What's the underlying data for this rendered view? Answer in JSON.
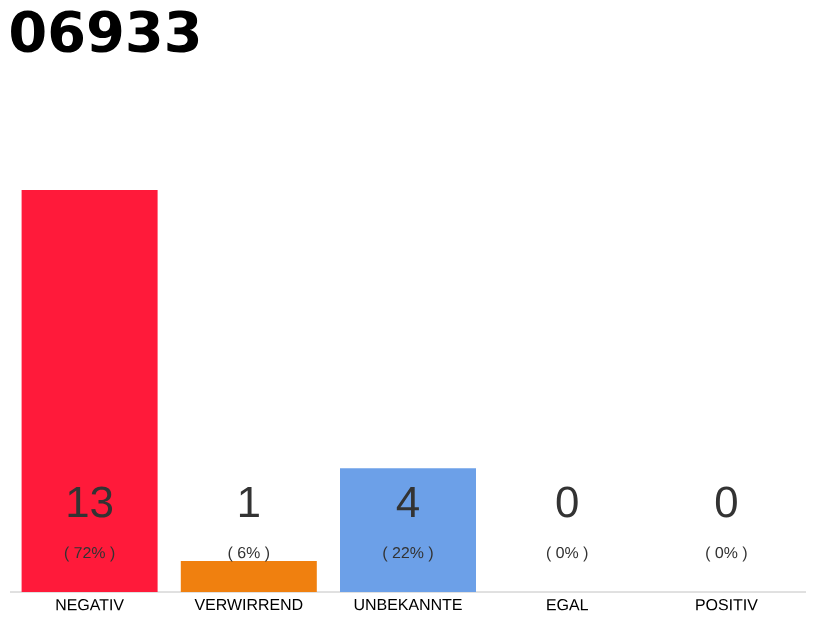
{
  "chart_data": {
    "type": "bar",
    "title": "06933",
    "categories": [
      "NEGATIV",
      "VERWIRREND",
      "UNBEKANNTE",
      "EGAL",
      "POSITIV"
    ],
    "values": [
      13,
      1,
      4,
      0,
      0
    ],
    "colors": [
      "#ff1a3a",
      "#f0800f",
      "#6ca0e8",
      "#d0d0d0",
      "#d0d0d0"
    ],
    "tick_labels": "x",
    "value_labels": [
      "13",
      "1",
      "4",
      "0",
      "0"
    ],
    "annotations": [
      {
        "text": "( 72% )",
        "x": "NEGATIV",
        "y": 0
      },
      {
        "text": "( 6% )",
        "x": "VERWIRREND",
        "y": 0
      },
      {
        "text": "( 22% )",
        "x": "UNBEKANNTE",
        "y": 0
      },
      {
        "text": "( 0% )",
        "x": "EGAL",
        "y": 0
      },
      {
        "text": "( 0% )",
        "x": "POSITIV",
        "y": 0
      }
    ]
  }
}
